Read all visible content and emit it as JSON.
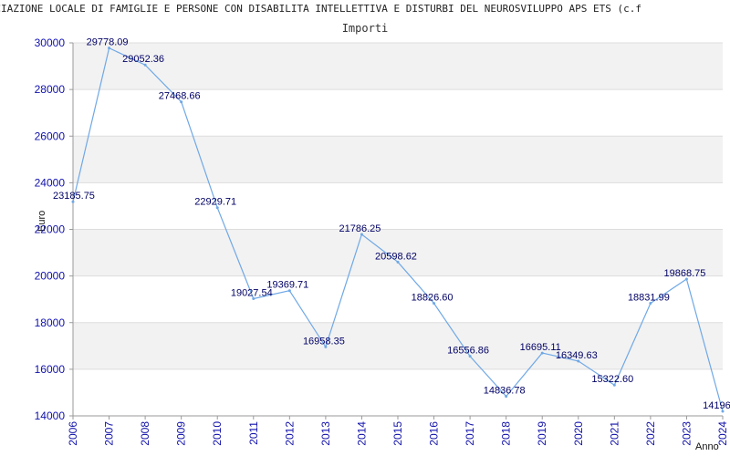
{
  "chart_data": {
    "type": "line",
    "title": "NO ASSOCIAZIONE LOCALE DI FAMIGLIE E PERSONE CON DISABILITA INTELLETTIVA E DISTURBI DEL NEUROSVILUPPO APS ETS (c.f",
    "subtitle": "Importi",
    "xlabel": "Anno",
    "ylabel": "Euro",
    "x": [
      2006,
      2007,
      2008,
      2009,
      2010,
      2011,
      2012,
      2013,
      2014,
      2015,
      2016,
      2017,
      2018,
      2019,
      2020,
      2021,
      2022,
      2023,
      2024
    ],
    "values": [
      23185.75,
      29778.09,
      29052.36,
      27468.66,
      22929.71,
      19027.54,
      19369.71,
      16958.35,
      21786.25,
      20598.62,
      18826.6,
      16556.86,
      14836.78,
      16695.11,
      16349.63,
      15322.6,
      18831.99,
      19868.75,
      14196.0
    ],
    "labels": [
      "23185.75",
      "29778.09",
      "29052.36",
      "27468.66",
      "22929.71",
      "19027.54",
      "19369.71",
      "16958.35",
      "21786.25",
      "20598.62",
      "18826.60",
      "16556.86",
      "14836.78",
      "16695.11",
      "16349.63",
      "15322.60",
      "18831.99",
      "19868.75",
      "14196.0"
    ],
    "ylim": [
      14000,
      30000
    ],
    "yticks": [
      14000,
      16000,
      18000,
      20000,
      22000,
      24000,
      26000,
      28000,
      30000
    ],
    "xticks": [
      "2006",
      "2007",
      "2008",
      "2009",
      "2010",
      "2011",
      "2012",
      "2013",
      "2014",
      "2015",
      "2016",
      "2017",
      "2018",
      "2019",
      "2020",
      "2021",
      "2022",
      "2023",
      "2024"
    ],
    "grid": true,
    "line_color": "#6fa8e6",
    "axis_color": "#1010aa",
    "band_color": "#f2f2f2"
  }
}
